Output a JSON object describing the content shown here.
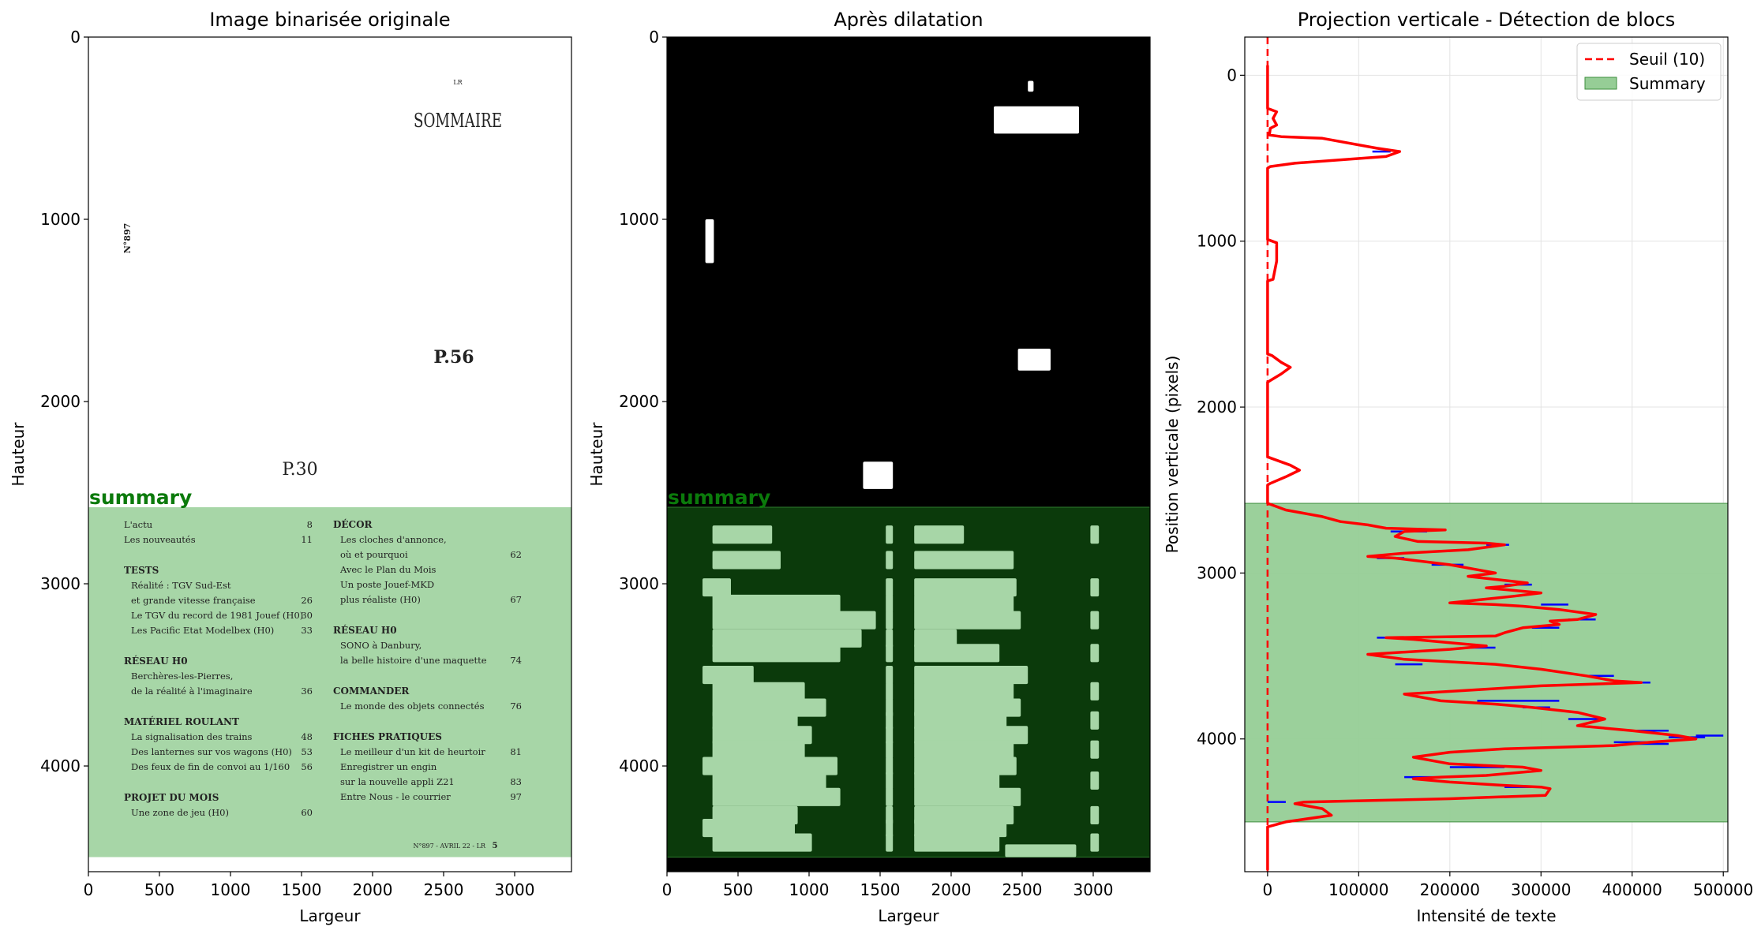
{
  "colors": {
    "summary_fill": "#a7d6a7",
    "summary_fill_dark": "#0b3a0b",
    "summary_text": "#0b7a0b",
    "threshold": "#ff0000",
    "profile": "#ff0000",
    "peak_marks": "#0000ff",
    "legend_patch": "#96cd96"
  },
  "panels": {
    "left": {
      "title": "Image binarisée originale",
      "xlabel": "Largeur",
      "ylabel": "Hauteur",
      "x_ticks": [
        "0",
        "500",
        "1000",
        "1500",
        "2000",
        "2500",
        "3000"
      ],
      "y_ticks": [
        "0",
        "1000",
        "2000",
        "3000",
        "4000"
      ],
      "summary_label": "summary",
      "doc": {
        "lr": "LR",
        "sommaire": "SOMMAIRE",
        "issue": "N°897",
        "p56": "P.56",
        "p30": "P.30",
        "left_col": [
          {
            "t": "L'actu",
            "n": "8",
            "h": false
          },
          {
            "t": "Les nouveautés",
            "n": "11",
            "h": false
          },
          {
            "t": "TESTS",
            "n": "",
            "h": true
          },
          {
            "t": "Réalité : TGV Sud-Est",
            "n": "",
            "h": false
          },
          {
            "t": "et grande vitesse française",
            "n": "26",
            "h": false
          },
          {
            "t": "Le TGV du record de 1981 Jouef (H0)",
            "n": "30",
            "h": false
          },
          {
            "t": "Les Pacific Etat Modelbex (H0)",
            "n": "33",
            "h": false
          },
          {
            "t": "RÉSEAU H0",
            "n": "",
            "h": true
          },
          {
            "t": "Berchères-les-Pierres,",
            "n": "",
            "h": false
          },
          {
            "t": "de la réalité à l'imaginaire",
            "n": "36",
            "h": false
          },
          {
            "t": "MATÉRIEL ROULANT",
            "n": "",
            "h": true
          },
          {
            "t": "La signalisation des trains",
            "n": "48",
            "h": false
          },
          {
            "t": "Des lanternes sur vos wagons (H0)",
            "n": "53",
            "h": false
          },
          {
            "t": "Des feux de fin de convoi au 1/160",
            "n": "56",
            "h": false
          },
          {
            "t": "PROJET DU MOIS",
            "n": "",
            "h": true
          },
          {
            "t": "Une zone de jeu (H0)",
            "n": "60",
            "h": false
          }
        ],
        "right_col": [
          {
            "t": "DÉCOR",
            "n": "",
            "h": true
          },
          {
            "t": "Les cloches d'annonce,",
            "n": "",
            "h": false
          },
          {
            "t": "où et pourquoi",
            "n": "62",
            "h": false
          },
          {
            "t": "Avec le Plan du Mois",
            "n": "",
            "h": false
          },
          {
            "t": "Un poste Jouef-MKD",
            "n": "",
            "h": false
          },
          {
            "t": "plus réaliste (H0)",
            "n": "67",
            "h": false
          },
          {
            "t": "RÉSEAU H0",
            "n": "",
            "h": true
          },
          {
            "t": "SONO à Danbury,",
            "n": "",
            "h": false
          },
          {
            "t": "la belle histoire d'une maquette",
            "n": "74",
            "h": false
          },
          {
            "t": "COMMANDER",
            "n": "",
            "h": true
          },
          {
            "t": "Le monde des objets connectés",
            "n": "76",
            "h": false
          },
          {
            "t": "FICHES PRATIQUES",
            "n": "",
            "h": true
          },
          {
            "t": "Le meilleur d'un kit de heurtoir",
            "n": "81",
            "h": false
          },
          {
            "t": "Enregistrer un engin",
            "n": "",
            "h": false
          },
          {
            "t": "sur la nouvelle appli Z21",
            "n": "83",
            "h": false
          },
          {
            "t": "Entre Nous - le courrier",
            "n": "97",
            "h": false
          }
        ],
        "footer": "N°897 - AVRIL 22 - LR",
        "footer_page": "5"
      }
    },
    "middle": {
      "title": "Après dilatation",
      "xlabel": "Largeur",
      "ylabel": "Hauteur",
      "x_ticks": [
        "0",
        "500",
        "1000",
        "1500",
        "2000",
        "2500",
        "3000"
      ],
      "y_ticks": [
        "0",
        "1000",
        "2000",
        "3000",
        "4000"
      ],
      "summary_label": "summary"
    },
    "right": {
      "title": "Projection verticale - Détection de blocs",
      "xlabel": "Intensité de texte",
      "ylabel": "Position verticale (pixels)",
      "x_ticks": [
        "0",
        "100000",
        "200000",
        "300000",
        "400000",
        "500000"
      ],
      "y_ticks": [
        "0",
        "1000",
        "2000",
        "3000",
        "4000"
      ],
      "legend": {
        "threshold": "Seuil (10)",
        "summary": "Summary"
      }
    }
  },
  "chart_data": [
    {
      "type": "heatmap",
      "title": "Image binarisée originale",
      "xlabel": "Largeur",
      "ylabel": "Hauteur",
      "xlim": [
        0,
        3400
      ],
      "ylim": [
        4580,
        0
      ],
      "regions": [
        {
          "label": "summary",
          "y_start": 2580,
          "y_end": 4500
        }
      ]
    },
    {
      "type": "heatmap",
      "title": "Après dilatation",
      "xlabel": "Largeur",
      "ylabel": "Hauteur",
      "xlim": [
        0,
        3400
      ],
      "ylim": [
        4580,
        0
      ],
      "regions": [
        {
          "label": "summary",
          "y_start": 2580,
          "y_end": 4500
        }
      ]
    },
    {
      "type": "line",
      "title": "Projection verticale - Détection de blocs",
      "xlabel": "Intensité de texte",
      "ylabel": "Position verticale (pixels)",
      "xlim": [
        -25000,
        505000
      ],
      "ylim": [
        4800,
        -230
      ],
      "grid": true,
      "legend_position": "top-right",
      "threshold": {
        "name": "Seuil (10)",
        "value": 10
      },
      "summary_band": {
        "name": "Summary",
        "y_start": 2580,
        "y_end": 4500
      },
      "profile": [
        [
          0,
          -60
        ],
        [
          0,
          200
        ],
        [
          5000,
          210
        ],
        [
          10000,
          220
        ],
        [
          6000,
          260
        ],
        [
          10000,
          300
        ],
        [
          3000,
          320
        ],
        [
          2000,
          360
        ],
        [
          15000,
          370
        ],
        [
          60000,
          380
        ],
        [
          120000,
          440
        ],
        [
          145000,
          460
        ],
        [
          130000,
          490
        ],
        [
          30000,
          530
        ],
        [
          3000,
          550
        ],
        [
          0,
          560
        ],
        [
          0,
          990
        ],
        [
          5000,
          1000
        ],
        [
          10000,
          1010
        ],
        [
          10000,
          1120
        ],
        [
          6000,
          1230
        ],
        [
          0,
          1240
        ],
        [
          0,
          1680
        ],
        [
          5000,
          1690
        ],
        [
          15000,
          1730
        ],
        [
          25000,
          1760
        ],
        [
          15000,
          1800
        ],
        [
          3000,
          1840
        ],
        [
          0,
          1850
        ],
        [
          0,
          2300
        ],
        [
          5000,
          2310
        ],
        [
          25000,
          2350
        ],
        [
          35000,
          2380
        ],
        [
          20000,
          2420
        ],
        [
          3000,
          2460
        ],
        [
          0,
          2470
        ],
        [
          0,
          2580
        ],
        [
          20000,
          2620
        ],
        [
          60000,
          2660
        ],
        [
          80000,
          2690
        ],
        [
          110000,
          2710
        ],
        [
          130000,
          2730
        ],
        [
          195000,
          2740
        ],
        [
          150000,
          2750
        ],
        [
          140000,
          2780
        ],
        [
          165000,
          2810
        ],
        [
          240000,
          2820
        ],
        [
          260000,
          2830
        ],
        [
          220000,
          2860
        ],
        [
          150000,
          2880
        ],
        [
          110000,
          2900
        ],
        [
          140000,
          2910
        ],
        [
          200000,
          2950
        ],
        [
          230000,
          2980
        ],
        [
          250000,
          3000
        ],
        [
          220000,
          3020
        ],
        [
          285000,
          3060
        ],
        [
          260000,
          3080
        ],
        [
          240000,
          3090
        ],
        [
          300000,
          3120
        ],
        [
          270000,
          3140
        ],
        [
          200000,
          3180
        ],
        [
          250000,
          3190
        ],
        [
          280000,
          3200
        ],
        [
          320000,
          3220
        ],
        [
          360000,
          3250
        ],
        [
          340000,
          3280
        ],
        [
          310000,
          3290
        ],
        [
          320000,
          3310
        ],
        [
          280000,
          3330
        ],
        [
          260000,
          3360
        ],
        [
          250000,
          3380
        ],
        [
          130000,
          3390
        ],
        [
          160000,
          3400
        ],
        [
          200000,
          3420
        ],
        [
          240000,
          3440
        ],
        [
          200000,
          3460
        ],
        [
          110000,
          3490
        ],
        [
          150000,
          3520
        ],
        [
          250000,
          3550
        ],
        [
          300000,
          3580
        ],
        [
          350000,
          3620
        ],
        [
          380000,
          3650
        ],
        [
          410000,
          3660
        ],
        [
          300000,
          3680
        ],
        [
          210000,
          3710
        ],
        [
          150000,
          3730
        ],
        [
          170000,
          3750
        ],
        [
          190000,
          3770
        ],
        [
          250000,
          3790
        ],
        [
          290000,
          3810
        ],
        [
          340000,
          3840
        ],
        [
          370000,
          3880
        ],
        [
          340000,
          3920
        ],
        [
          400000,
          3950
        ],
        [
          450000,
          3980
        ],
        [
          470000,
          4000
        ],
        [
          420000,
          4020
        ],
        [
          380000,
          4040
        ],
        [
          320000,
          4050
        ],
        [
          260000,
          4060
        ],
        [
          200000,
          4080
        ],
        [
          160000,
          4110
        ],
        [
          200000,
          4150
        ],
        [
          280000,
          4170
        ],
        [
          300000,
          4190
        ],
        [
          240000,
          4220
        ],
        [
          190000,
          4230
        ],
        [
          160000,
          4240
        ],
        [
          200000,
          4260
        ],
        [
          260000,
          4280
        ],
        [
          300000,
          4290
        ],
        [
          310000,
          4300
        ],
        [
          305000,
          4340
        ],
        [
          200000,
          4360
        ],
        [
          120000,
          4370
        ],
        [
          40000,
          4380
        ],
        [
          30000,
          4390
        ],
        [
          60000,
          4420
        ],
        [
          70000,
          4460
        ],
        [
          20000,
          4500
        ],
        [
          0,
          4530
        ],
        [
          0,
          4790
        ]
      ],
      "peaks": [
        [
          [
            115000,
            135000
          ],
          460
        ],
        [
          [
            135000,
            175000
          ],
          2750
        ],
        [
          [
            240000,
            265000
          ],
          2830
        ],
        [
          [
            120000,
            150000
          ],
          2910
        ],
        [
          [
            180000,
            215000
          ],
          2950
        ],
        [
          [
            260000,
            290000
          ],
          3070
        ],
        [
          [
            300000,
            330000
          ],
          3190
        ],
        [
          [
            330000,
            360000
          ],
          3280
        ],
        [
          [
            290000,
            320000
          ],
          3330
        ],
        [
          [
            120000,
            160000
          ],
          3390
        ],
        [
          [
            220000,
            250000
          ],
          3450
        ],
        [
          [
            140000,
            170000
          ],
          3550
        ],
        [
          [
            350000,
            380000
          ],
          3620
        ],
        [
          [
            380000,
            420000
          ],
          3660
        ],
        [
          [
            230000,
            320000
          ],
          3770
        ],
        [
          [
            280000,
            310000
          ],
          3810
        ],
        [
          [
            330000,
            370000
          ],
          3880
        ],
        [
          [
            400000,
            440000
          ],
          3950
        ],
        [
          [
            440000,
            480000
          ],
          3990
        ],
        [
          [
            400000,
            440000
          ],
          4030
        ],
        [
          [
            470000,
            500000
          ],
          3980
        ],
        [
          [
            380000,
            420000
          ],
          4020
        ],
        [
          [
            200000,
            260000
          ],
          4170
        ],
        [
          [
            150000,
            200000
          ],
          4230
        ],
        [
          [
            260000,
            290000
          ],
          4290
        ],
        [
          [
            0,
            20000
          ],
          4380
        ]
      ]
    }
  ]
}
